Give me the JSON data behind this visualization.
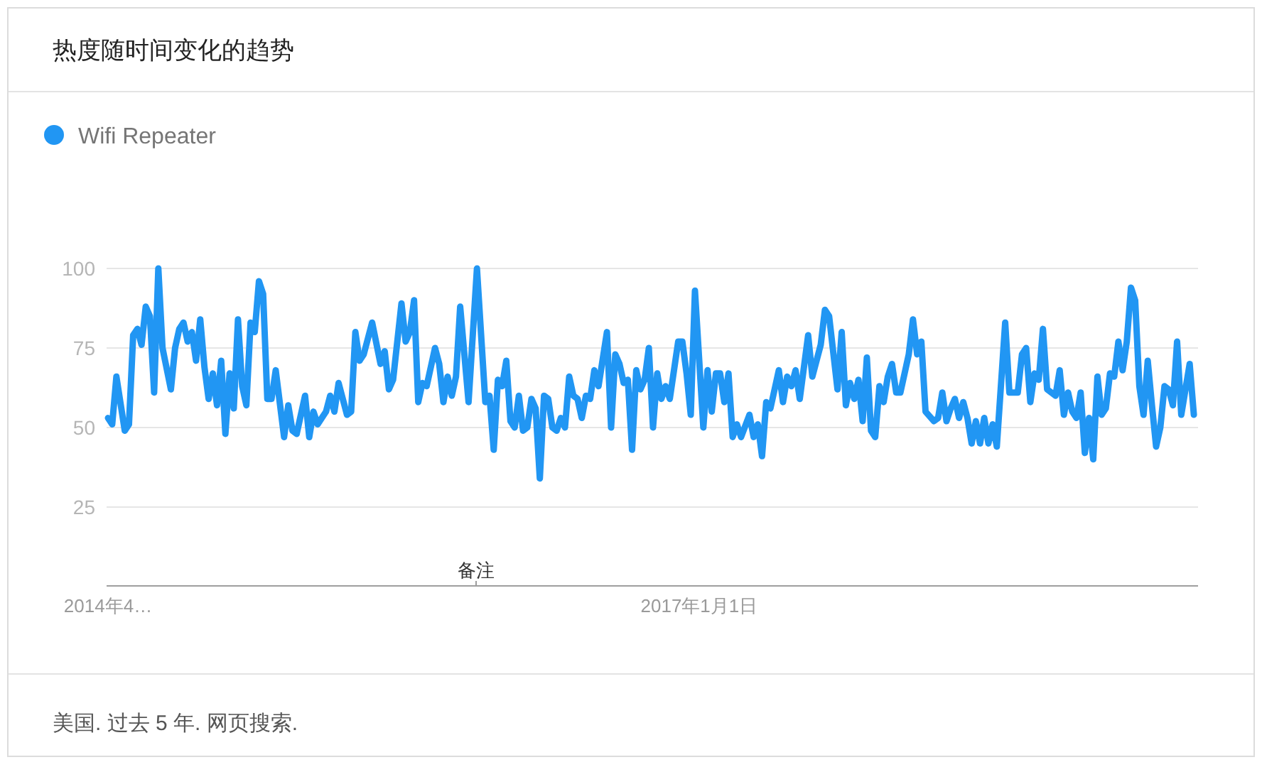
{
  "chart_data": {
    "type": "line",
    "title": "热度随时间变化的趋势",
    "x": [
      "2014-04-20",
      "2014-04-27",
      "2014-05-04",
      "2014-05-18",
      "2014-05-25",
      "2014-06-01",
      "2014-06-08",
      "2014-06-15",
      "2014-06-22",
      "2014-06-29",
      "2014-07-06",
      "2014-07-13",
      "2014-07-20",
      "2014-08-03",
      "2014-08-10",
      "2014-08-17",
      "2014-08-24",
      "2014-08-31",
      "2014-09-07",
      "2014-09-14",
      "2014-09-21",
      "2014-09-28",
      "2014-10-05",
      "2014-10-12",
      "2014-10-19",
      "2014-10-26",
      "2014-11-02",
      "2014-11-09",
      "2014-11-16",
      "2014-11-23",
      "2014-11-30",
      "2014-12-07",
      "2014-12-14",
      "2014-12-21",
      "2014-12-28",
      "2015-01-04",
      "2015-01-11",
      "2015-01-18",
      "2015-01-25",
      "2015-02-08",
      "2015-02-15",
      "2015-02-22",
      "2015-03-01",
      "2015-03-15",
      "2015-03-22",
      "2015-03-29",
      "2015-04-05",
      "2015-04-12",
      "2015-04-19",
      "2015-04-26",
      "2015-05-03",
      "2015-05-10",
      "2015-05-24",
      "2015-05-31",
      "2015-06-07",
      "2015-06-14",
      "2015-06-21",
      "2015-07-05",
      "2015-07-19",
      "2015-07-26",
      "2015-08-02",
      "2015-08-09",
      "2015-08-23",
      "2015-08-30",
      "2015-09-06",
      "2015-09-13",
      "2015-09-20",
      "2015-09-27",
      "2015-10-04",
      "2015-10-18",
      "2015-10-25",
      "2015-11-01",
      "2015-11-08",
      "2015-11-15",
      "2015-11-22",
      "2015-11-29",
      "2015-12-13",
      "2015-12-27",
      "2016-01-10",
      "2016-01-17",
      "2016-01-24",
      "2016-01-31",
      "2016-02-07",
      "2016-02-14",
      "2016-02-21",
      "2016-02-28",
      "2016-03-06",
      "2016-03-13",
      "2016-03-20",
      "2016-03-27",
      "2016-04-03",
      "2016-04-10",
      "2016-04-17",
      "2016-04-24",
      "2016-05-01",
      "2016-05-08",
      "2016-05-15",
      "2016-05-22",
      "2016-05-29",
      "2016-06-05",
      "2016-06-12",
      "2016-06-19",
      "2016-06-26",
      "2016-07-03",
      "2016-07-10",
      "2016-07-17",
      "2016-07-31",
      "2016-08-07",
      "2016-08-14",
      "2016-08-21",
      "2016-08-28",
      "2016-09-04",
      "2016-09-11",
      "2016-09-18",
      "2016-09-25",
      "2016-10-02",
      "2016-10-09",
      "2016-10-16",
      "2016-10-23",
      "2016-10-30",
      "2016-11-06",
      "2016-11-13",
      "2016-11-27",
      "2016-12-04",
      "2016-12-11",
      "2016-12-18",
      "2016-12-25",
      "2017-01-08",
      "2017-01-15",
      "2017-01-22",
      "2017-01-29",
      "2017-02-05",
      "2017-02-12",
      "2017-02-19",
      "2017-02-26",
      "2017-03-05",
      "2017-03-12",
      "2017-03-26",
      "2017-04-02",
      "2017-04-09",
      "2017-04-16",
      "2017-04-23",
      "2017-04-30",
      "2017-05-14",
      "2017-05-21",
      "2017-05-28",
      "2017-06-04",
      "2017-06-11",
      "2017-06-18",
      "2017-07-02",
      "2017-07-09",
      "2017-07-23",
      "2017-07-30",
      "2017-08-06",
      "2017-08-20",
      "2017-08-27",
      "2017-09-03",
      "2017-09-10",
      "2017-09-17",
      "2017-09-24",
      "2017-10-01",
      "2017-10-08",
      "2017-10-15",
      "2017-10-22",
      "2017-10-29",
      "2017-11-05",
      "2017-11-12",
      "2017-11-19",
      "2017-11-26",
      "2017-12-03",
      "2017-12-17",
      "2017-12-24",
      "2017-12-31",
      "2018-01-07",
      "2018-01-14",
      "2018-01-28",
      "2018-02-04",
      "2018-02-11",
      "2018-02-18",
      "2018-02-25",
      "2018-03-04",
      "2018-03-11",
      "2018-03-18",
      "2018-03-25",
      "2018-04-01",
      "2018-04-08",
      "2018-04-15",
      "2018-04-22",
      "2018-04-29",
      "2018-05-06",
      "2018-05-13",
      "2018-05-27",
      "2018-06-03",
      "2018-06-17",
      "2018-06-24",
      "2018-07-01",
      "2018-07-08",
      "2018-07-15",
      "2018-07-22",
      "2018-07-29",
      "2018-08-05",
      "2018-08-19",
      "2018-08-26",
      "2018-09-02",
      "2018-09-09",
      "2018-09-16",
      "2018-09-23",
      "2018-09-30",
      "2018-10-07",
      "2018-10-14",
      "2018-10-21",
      "2018-10-28",
      "2018-11-04",
      "2018-11-11",
      "2018-11-18",
      "2018-11-25",
      "2018-12-02",
      "2018-12-09",
      "2018-12-16",
      "2018-12-23",
      "2018-12-30",
      "2019-01-06",
      "2019-01-13",
      "2019-01-20",
      "2019-01-27",
      "2019-02-03",
      "2019-02-10",
      "2019-02-17",
      "2019-02-24",
      "2019-03-03",
      "2019-03-10",
      "2019-03-17",
      "2019-03-31",
      "2019-04-07"
    ],
    "series": [
      {
        "name": "Wifi Repeater",
        "color": "#2196f3",
        "values": [
          53,
          51,
          66,
          49,
          51,
          79,
          81,
          76,
          88,
          85,
          61,
          100,
          75,
          62,
          75,
          81,
          83,
          77,
          80,
          71,
          84,
          69,
          59,
          67,
          57,
          71,
          48,
          67,
          56,
          84,
          63,
          57,
          83,
          80,
          96,
          92,
          59,
          59,
          68,
          47,
          57,
          49,
          48,
          60,
          47,
          55,
          51,
          53,
          55,
          60,
          55,
          64,
          54,
          55,
          80,
          71,
          73,
          83,
          70,
          74,
          62,
          65,
          89,
          77,
          80,
          90,
          58,
          64,
          63,
          75,
          70,
          58,
          66,
          60,
          66,
          88,
          58,
          100,
          58,
          60,
          43,
          65,
          63,
          71,
          52,
          50,
          60,
          49,
          50,
          59,
          56,
          34,
          60,
          59,
          50,
          49,
          53,
          50,
          66,
          60,
          59,
          53,
          60,
          59,
          68,
          63,
          80,
          50,
          73,
          70,
          64,
          65,
          43,
          68,
          62,
          65,
          75,
          50,
          67,
          59,
          63,
          59,
          77,
          77,
          67,
          54,
          93,
          50,
          68,
          55,
          67,
          67,
          58,
          67,
          47,
          51,
          47,
          54,
          47,
          51,
          41,
          58,
          56,
          68,
          58,
          66,
          63,
          68,
          59,
          79,
          66,
          76,
          87,
          85,
          62,
          80,
          57,
          64,
          59,
          65,
          52,
          72,
          49,
          47,
          63,
          58,
          66,
          70,
          61,
          61,
          73,
          84,
          73,
          77,
          55,
          52,
          53,
          61,
          52,
          56,
          59,
          53,
          58,
          53,
          45,
          52,
          45,
          53,
          45,
          51,
          44,
          83,
          61,
          61,
          73,
          75,
          58,
          67,
          65,
          81,
          62,
          60,
          68,
          54,
          61,
          55,
          53,
          61,
          42,
          53,
          40,
          66,
          54,
          56,
          67,
          66,
          77,
          68,
          77,
          94,
          90,
          63,
          54,
          71,
          57,
          44,
          50,
          63,
          62,
          57,
          77,
          54,
          70,
          54
        ]
      }
    ],
    "xlim": [
      "2014-04-20",
      "2019-04-14"
    ],
    "xticks": [
      {
        "value": "2014-04-20",
        "label": "2014年4…"
      },
      {
        "value": "2017-01-01",
        "label": "2017年1月1日"
      }
    ],
    "ylim": [
      0,
      100
    ],
    "yticks": [
      25,
      50,
      75,
      100
    ],
    "grid": "y",
    "legend": "top left",
    "line_style": "solid",
    "annotations": [
      "备注",
      "美国. 过去 5 年. 网页搜索."
    ]
  }
}
